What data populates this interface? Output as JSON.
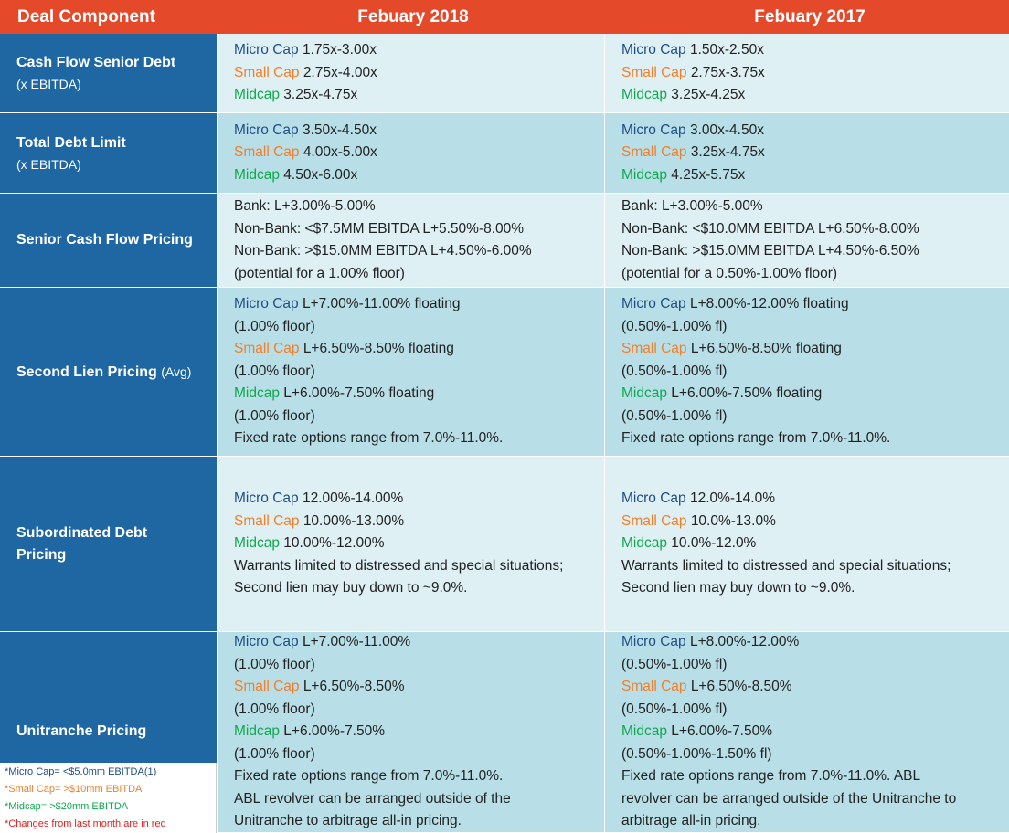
{
  "header": {
    "col1": "Deal Component",
    "col2": "Febuary 2018",
    "col3": "Febuary  2017"
  },
  "tiers": {
    "micro": "Micro Cap",
    "small": "Small Cap",
    "mid": "Midcap"
  },
  "rows": {
    "cash_flow": {
      "label": "Cash Flow Senior Debt",
      "sub": "(x EBITDA)",
      "y2018": {
        "micro": "1.75x-3.00x",
        "small": "2.75x-4.00x",
        "mid": "3.25x-4.75x"
      },
      "y2017": {
        "micro": "1.50x-2.50x",
        "small": "2.75x-3.75x",
        "mid": "3.25x-4.25x"
      }
    },
    "total_debt": {
      "label": "Total Debt Limit",
      "sub": "(x EBITDA)",
      "y2018": {
        "micro": "3.50x-4.50x",
        "small": "4.00x-5.00x",
        "mid": "4.50x-6.00x"
      },
      "y2017": {
        "micro": "3.00x-4.50x",
        "small": "3.25x-4.75x",
        "mid": "4.25x-5.75x"
      }
    },
    "senior_pricing": {
      "label": "Senior Cash Flow Pricing",
      "y2018": [
        "Bank: L+3.00%-5.00%",
        "Non-Bank: <$7.5MM EBITDA L+5.50%-8.00%",
        "Non-Bank: >$15.0MM EBITDA L+4.50%-6.00%",
        "(potential for a 1.00% floor)"
      ],
      "y2017": [
        "Bank: L+3.00%-5.00%",
        "Non-Bank: <$10.0MM EBITDA L+6.50%-8.00%",
        "Non-Bank: >$15.0MM EBITDA L+4.50%-6.50%",
        "(potential for a 0.50%-1.00% floor)"
      ]
    },
    "second_lien": {
      "label": "Second Lien Pricing",
      "label_suffix": "(Avg)",
      "y2018": {
        "micro": "L+7.00%-11.00% floating",
        "micro_floor": "(1.00% floor)",
        "small": "L+6.50%-8.50% floating",
        "small_floor": "(1.00% floor)",
        "mid": "L+6.00%-7.50% floating",
        "mid_floor": "(1.00% floor)",
        "fixed": "Fixed rate options range from 7.0%-11.0%."
      },
      "y2017": {
        "micro": "L+8.00%-12.00% floating",
        "micro_floor": "(0.50%-1.00% fl)",
        "small": "L+6.50%-8.50% floating",
        "small_floor": "(0.50%-1.00% fl)",
        "mid": "L+6.00%-7.50% floating",
        "mid_floor": "(0.50%-1.00% fl)",
        "fixed": "Fixed rate options range from 7.0%-11.0%."
      }
    },
    "sub_debt": {
      "label": "Subordinated Debt Pricing",
      "y2018": {
        "micro": "12.00%-14.00%",
        "small": "10.00%-13.00%",
        "mid": "10.00%-12.00%",
        "note1": "Warrants limited to distressed and special situations;",
        "note2": "Second lien may buy down to ~9.0%."
      },
      "y2017": {
        "micro": "12.0%-14.0%",
        "small": "10.0%-13.0%",
        "mid": "10.0%-12.0%",
        "note1": "Warrants limited to distressed and special situations;",
        "note2": "Second lien may buy down to ~9.0%."
      }
    },
    "unitranche": {
      "label": "Unitranche Pricing",
      "y2018": {
        "micro": "L+7.00%-11.00%",
        "micro_floor": "(1.00% floor)",
        "small": "L+6.50%-8.50%",
        "small_floor": "(1.00% floor)",
        "mid": "L+6.00%-7.50%",
        "mid_floor": "(1.00% floor)",
        "fixed": "Fixed rate options range from 7.0%-11.0%.",
        "abl1": "ABL revolver can be arranged outside of the",
        "abl2": "Unitranche to arbitrage all-in pricing."
      },
      "y2017": {
        "micro": "L+8.00%-12.00%",
        "micro_floor": "(0.50%-1.00% fl)",
        "small": "L+6.50%-8.50%",
        "small_floor": "(0.50%-1.00% fl)",
        "mid": "L+6.00%-7.50%",
        "mid_floor": "(0.50%-1.00%-1.50% fl)",
        "fixed": "Fixed rate options range from 7.0%-11.0%. ABL",
        "abl1": "revolver can be arranged outside of the Unitranche to",
        "abl2": "arbitrage all-in pricing."
      }
    }
  },
  "legend": {
    "micro": "*Micro Cap= <$5.0mm EBITDA(1)",
    "small": "*Small Cap= >$10mm EBITDA",
    "mid": "*Midcap= >$20mm EBITDA",
    "note": "*Changes from last month are in red"
  }
}
